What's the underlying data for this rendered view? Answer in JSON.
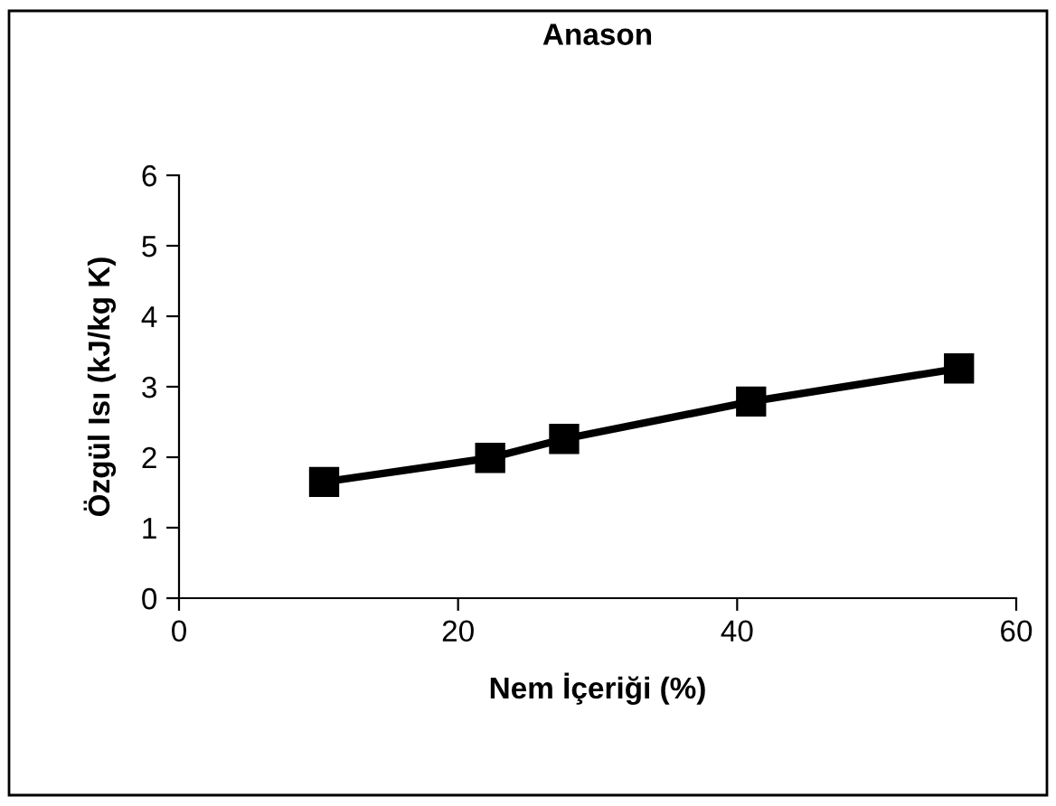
{
  "chart_data": {
    "type": "line",
    "title": "Anason",
    "xlabel": "Nem İçeriği (%)",
    "ylabel": "Özgül Isı (kJ/kg K)",
    "x": [
      10.4,
      22.3,
      27.6,
      41.0,
      55.9
    ],
    "series": [
      {
        "color": "#000000",
        "values": [
          1.65,
          1.99,
          2.26,
          2.79,
          3.26
        ]
      }
    ],
    "xlim": [
      0,
      60
    ],
    "xticks": [
      0,
      20,
      40,
      60
    ],
    "ylim": [
      0,
      6
    ],
    "yticks": [
      0,
      1,
      2,
      3,
      4,
      5,
      6
    ],
    "marker": "square",
    "line_style": "solid",
    "grid": false,
    "legend": false
  }
}
